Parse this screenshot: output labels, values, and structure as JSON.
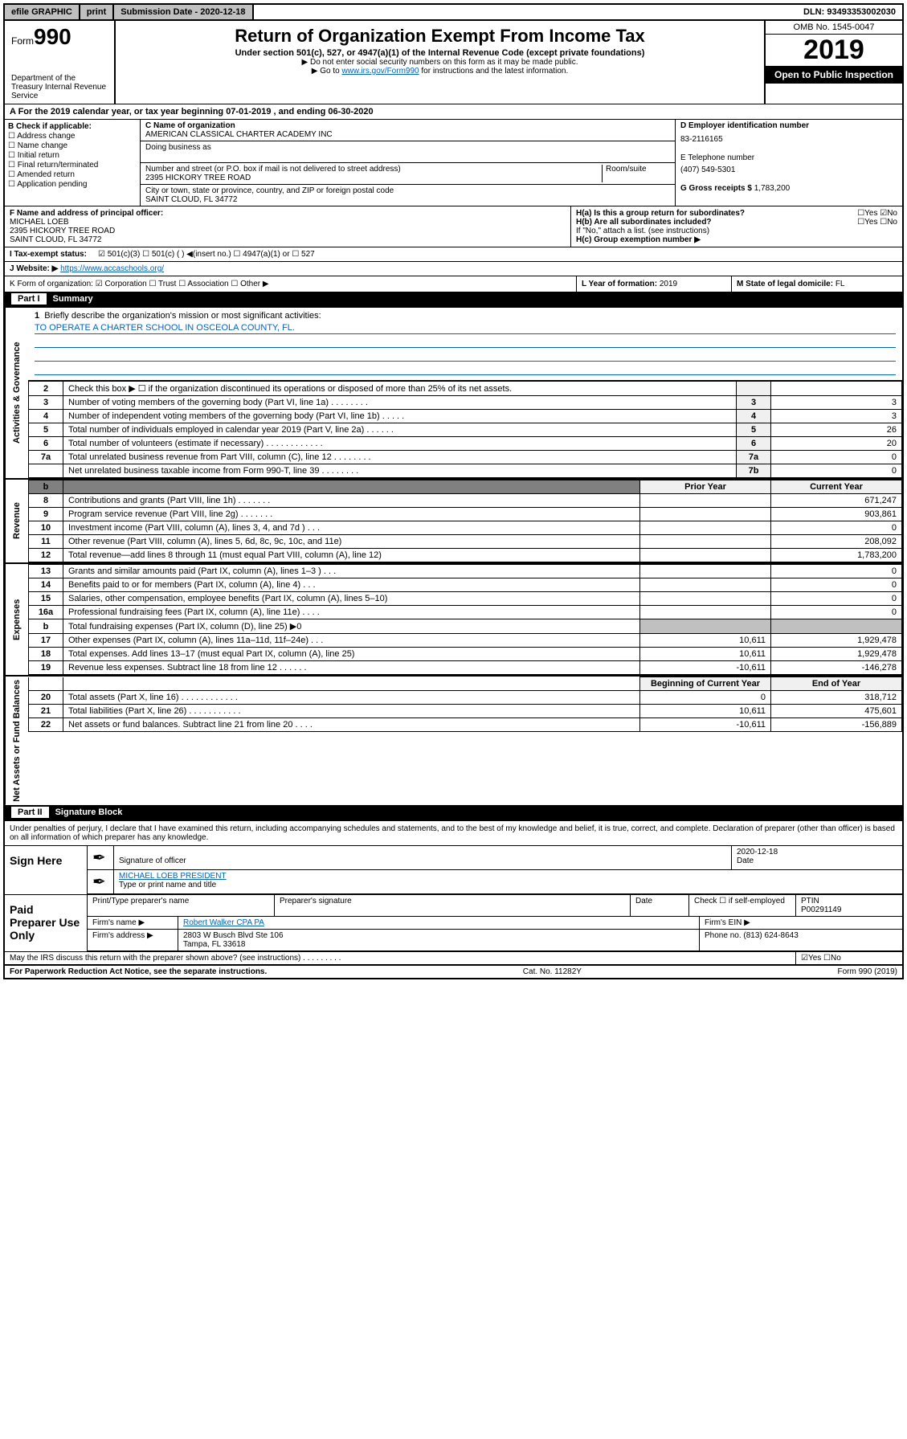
{
  "topbar": {
    "efile": "efile GRAPHIC",
    "print": "print",
    "submission": "Submission Date - 2020-12-18",
    "dln": "DLN: 93493353002030"
  },
  "header": {
    "form_word": "Form",
    "form_no": "990",
    "title": "Return of Organization Exempt From Income Tax",
    "sub": "Under section 501(c), 527, or 4947(a)(1) of the Internal Revenue Code (except private foundations)",
    "note1": "▶ Do not enter social security numbers on this form as it may be made public.",
    "note2_pre": "▶ Go to ",
    "note2_link": "www.irs.gov/Form990",
    "note2_post": " for instructions and the latest information.",
    "omb": "OMB No. 1545-0047",
    "year": "2019",
    "open": "Open to Public Inspection",
    "dept": "Department of the Treasury Internal Revenue Service"
  },
  "a_line": "A For the 2019 calendar year, or tax year beginning 07-01-2019   , and ending 06-30-2020",
  "b": {
    "label": "B Check if applicable:",
    "items": [
      "☐ Address change",
      "☐ Name change",
      "☐ Initial return",
      "☐ Final return/terminated",
      "☐ Amended return",
      "☐ Application pending"
    ]
  },
  "c": {
    "name_lbl": "C Name of organization",
    "name": "AMERICAN CLASSICAL CHARTER ACADEMY INC",
    "dba_lbl": "Doing business as",
    "dba": "",
    "addr_lbl": "Number and street (or P.O. box if mail is not delivered to street address)",
    "room_lbl": "Room/suite",
    "addr": "2395 HICKORY TREE ROAD",
    "city_lbl": "City or town, state or province, country, and ZIP or foreign postal code",
    "city": "SAINT CLOUD, FL  34772"
  },
  "d": {
    "lbl": "D Employer identification number",
    "val": "83-2116165"
  },
  "e": {
    "lbl": "E Telephone number",
    "val": "(407) 549-5301"
  },
  "g": {
    "lbl": "G Gross receipts $",
    "val": "1,783,200"
  },
  "f": {
    "lbl": "F Name and address of principal officer:",
    "name": "MICHAEL LOEB",
    "addr1": "2395 HICKORY TREE ROAD",
    "addr2": "SAINT CLOUD, FL  34772"
  },
  "h": {
    "a": "H(a)  Is this a group return for subordinates?",
    "a_ans": "☐Yes ☑No",
    "b": "H(b)  Are all subordinates included?",
    "b_ans": "☐Yes ☐No",
    "b_note": "If \"No,\" attach a list. (see instructions)",
    "c": "H(c)  Group exemption number ▶"
  },
  "i": {
    "lbl": "I   Tax-exempt status:",
    "val": "☑ 501(c)(3)   ☐ 501(c) (  ) ◀(insert no.)   ☐ 4947(a)(1) or   ☐ 527"
  },
  "j": {
    "lbl": "J   Website: ▶",
    "val": "https://www.accaschools.org/"
  },
  "k": {
    "lbl": "K Form of organization:  ☑ Corporation  ☐ Trust  ☐ Association  ☐ Other ▶"
  },
  "l": {
    "lbl": "L Year of formation:",
    "val": "2019"
  },
  "m": {
    "lbl": "M State of legal domicile:",
    "val": "FL"
  },
  "part1": {
    "num": "Part I",
    "title": "Summary"
  },
  "line1": {
    "num": "1",
    "text": "Briefly describe the organization's mission or most significant activities:",
    "mission": "TO OPERATE A CHARTER SCHOOL IN OSCEOLA COUNTY, FL."
  },
  "vlabels": {
    "gov": "Activities & Governance",
    "rev": "Revenue",
    "exp": "Expenses",
    "net": "Net Assets or Fund Balances"
  },
  "gov_rows": [
    {
      "n": "2",
      "d": "Check this box ▶ ☐  if the organization discontinued its operations or disposed of more than 25% of its net assets.",
      "l": "",
      "v": ""
    },
    {
      "n": "3",
      "d": "Number of voting members of the governing body (Part VI, line 1a)  .   .   .   .   .   .   .   .",
      "l": "3",
      "v": "3"
    },
    {
      "n": "4",
      "d": "Number of independent voting members of the governing body (Part VI, line 1b)  .   .   .   .   .",
      "l": "4",
      "v": "3"
    },
    {
      "n": "5",
      "d": "Total number of individuals employed in calendar year 2019 (Part V, line 2a)  .   .   .   .   .   .",
      "l": "5",
      "v": "26"
    },
    {
      "n": "6",
      "d": "Total number of volunteers (estimate if necessary)  .   .   .   .   .   .   .   .   .   .   .   .",
      "l": "6",
      "v": "20"
    },
    {
      "n": "7a",
      "d": "Total unrelated business revenue from Part VIII, column (C), line 12  .   .   .   .   .   .   .   .",
      "l": "7a",
      "v": "0"
    },
    {
      "n": "",
      "d": "Net unrelated business taxable income from Form 990-T, line 39   .   .   .   .   .   .   .   .",
      "l": "7b",
      "v": "0"
    }
  ],
  "col_headers": {
    "prior": "Prior Year",
    "current": "Current Year",
    "boy": "Beginning of Current Year",
    "eoy": "End of Year"
  },
  "rev_rows": [
    {
      "n": "8",
      "d": "Contributions and grants (Part VIII, line 1h)  .   .   .   .   .   .   .",
      "p": "",
      "c": "671,247"
    },
    {
      "n": "9",
      "d": "Program service revenue (Part VIII, line 2g)  .   .   .   .   .   .   .",
      "p": "",
      "c": "903,861"
    },
    {
      "n": "10",
      "d": "Investment income (Part VIII, column (A), lines 3, 4, and 7d )  .   .   .",
      "p": "",
      "c": "0"
    },
    {
      "n": "11",
      "d": "Other revenue (Part VIII, column (A), lines 5, 6d, 8c, 9c, 10c, and 11e)",
      "p": "",
      "c": "208,092"
    },
    {
      "n": "12",
      "d": "Total revenue—add lines 8 through 11 (must equal Part VIII, column (A), line 12)",
      "p": "",
      "c": "1,783,200"
    }
  ],
  "exp_rows": [
    {
      "n": "13",
      "d": "Grants and similar amounts paid (Part IX, column (A), lines 1–3 )  .   .   .",
      "p": "",
      "c": "0"
    },
    {
      "n": "14",
      "d": "Benefits paid to or for members (Part IX, column (A), line 4)  .   .   .",
      "p": "",
      "c": "0"
    },
    {
      "n": "15",
      "d": "Salaries, other compensation, employee benefits (Part IX, column (A), lines 5–10)",
      "p": "",
      "c": "0"
    },
    {
      "n": "16a",
      "d": "Professional fundraising fees (Part IX, column (A), line 11e)  .   .   .   .",
      "p": "",
      "c": "0"
    },
    {
      "n": "b",
      "d": "Total fundraising expenses (Part IX, column (D), line 25) ▶0",
      "p": "—",
      "c": "—"
    },
    {
      "n": "17",
      "d": "Other expenses (Part IX, column (A), lines 11a–11d, 11f–24e)  .   .   .",
      "p": "10,611",
      "c": "1,929,478"
    },
    {
      "n": "18",
      "d": "Total expenses. Add lines 13–17 (must equal Part IX, column (A), line 25)",
      "p": "10,611",
      "c": "1,929,478"
    },
    {
      "n": "19",
      "d": "Revenue less expenses. Subtract line 18 from line 12  .   .   .   .   .   .",
      "p": "-10,611",
      "c": "-146,278"
    }
  ],
  "net_rows": [
    {
      "n": "20",
      "d": "Total assets (Part X, line 16)  .   .   .   .   .   .   .   .   .   .   .   .",
      "p": "0",
      "c": "318,712"
    },
    {
      "n": "21",
      "d": "Total liabilities (Part X, line 26)  .   .   .   .   .   .   .   .   .   .   .",
      "p": "10,611",
      "c": "475,601"
    },
    {
      "n": "22",
      "d": "Net assets or fund balances. Subtract line 21 from line 20  .   .   .   .",
      "p": "-10,611",
      "c": "-156,889"
    }
  ],
  "part2": {
    "num": "Part II",
    "title": "Signature Block"
  },
  "sig": {
    "para": "Under penalties of perjury, I declare that I have examined this return, including accompanying schedules and statements, and to the best of my knowledge and belief, it is true, correct, and complete. Declaration of preparer (other than officer) is based on all information of which preparer has any knowledge.",
    "sign_here": "Sign Here",
    "sig_officer": "Signature of officer",
    "date1": "2020-12-18",
    "date_lbl": "Date",
    "name_title": "MICHAEL LOEB  PRESIDENT",
    "name_title_lbl": "Type or print name and title",
    "paid": "Paid Preparer Use Only",
    "prep_name_lbl": "Print/Type preparer's name",
    "prep_sig_lbl": "Preparer's signature",
    "check_lbl": "Check ☐ if self-employed",
    "ptin_lbl": "PTIN",
    "ptin": "P00291149",
    "firm_name_lbl": "Firm's name   ▶",
    "firm_name": "Robert Walker CPA PA",
    "firm_ein_lbl": "Firm's EIN ▶",
    "firm_addr_lbl": "Firm's address ▶",
    "firm_addr1": "2803 W Busch Blvd Ste 106",
    "firm_addr2": "Tampa, FL  33618",
    "phone_lbl": "Phone no.",
    "phone": "(813) 624-8643",
    "discuss": "May the IRS discuss this return with the preparer shown above? (see instructions)   .   .   .   .   .   .   .   .   .",
    "discuss_ans": "☑Yes  ☐No"
  },
  "bottom": {
    "pra": "For Paperwork Reduction Act Notice, see the separate instructions.",
    "cat": "Cat. No. 11282Y",
    "form": "Form 990 (2019)"
  }
}
